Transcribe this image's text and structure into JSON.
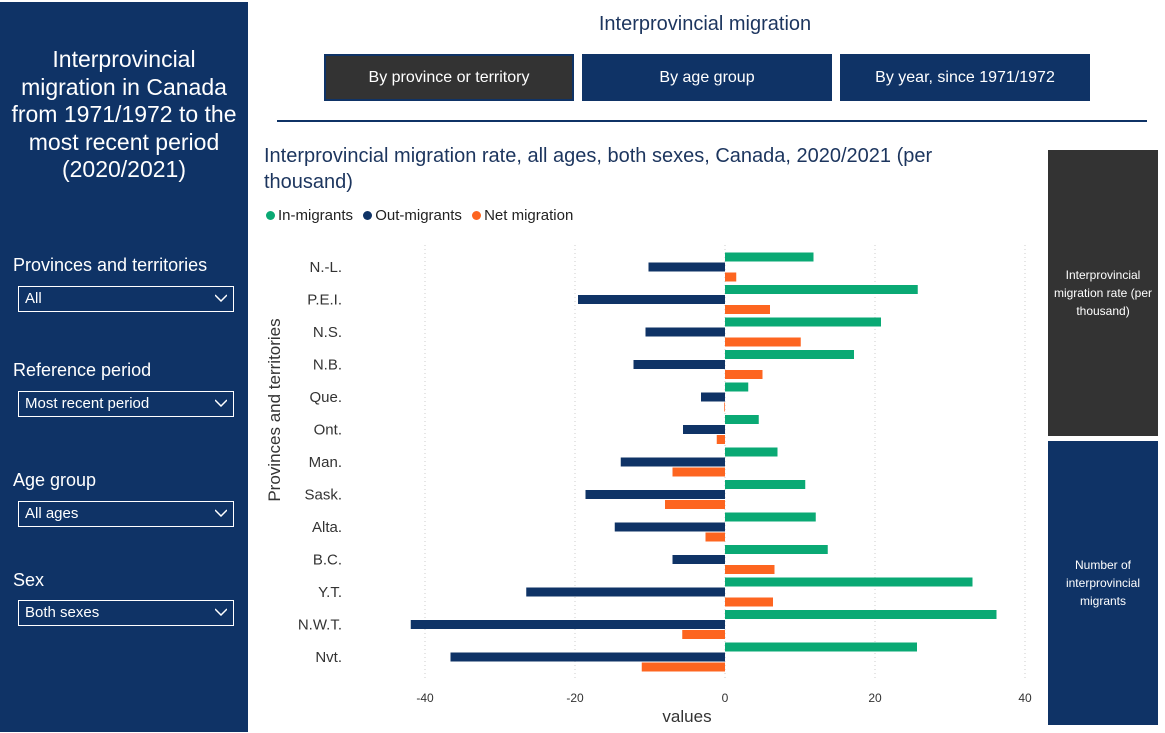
{
  "sidebar": {
    "title": "Interprovincial migration in Canada from 1971/1972 to the most recent period (2020/2021)",
    "filters": [
      {
        "label": "Provinces and territories",
        "value": "All"
      },
      {
        "label": "Reference period",
        "value": "Most recent period"
      },
      {
        "label": "Age group",
        "value": "All ages"
      },
      {
        "label": "Sex",
        "value": "Both sexes"
      }
    ]
  },
  "header": {
    "title": "Interprovincial migration",
    "tabs": [
      {
        "label": "By province or territory",
        "active": true
      },
      {
        "label": "By age group"
      },
      {
        "label": "By year, since 1971/1972"
      }
    ]
  },
  "right_panel": {
    "top": "Interprovincial migration rate (per thousand)",
    "bottom": "Number of interprovincial migrants"
  },
  "colors": {
    "navy": "#0f3366",
    "green": "#0aa974",
    "orange": "#fd6520"
  },
  "chart_data": {
    "type": "bar",
    "orientation": "horizontal",
    "title": "Interprovincial migration rate, all ages, both sexes, Canada, 2020/2021 (per thousand)",
    "xlabel": "values",
    "ylabel": "Provinces and territories",
    "xlim": [
      -40,
      40
    ],
    "xticks": [
      -40,
      -20,
      0,
      20,
      40
    ],
    "grid": true,
    "legend": "top-left",
    "categories": [
      "N.-L.",
      "P.E.I.",
      "N.S.",
      "N.B.",
      "Que.",
      "Ont.",
      "Man.",
      "Sask.",
      "Alta.",
      "B.C.",
      "Y.T.",
      "N.W.T.",
      "Nvt."
    ],
    "series": [
      {
        "name": "In-migrants",
        "color": "#0aa974",
        "values": [
          11.8,
          25.7,
          20.8,
          17.2,
          3.1,
          4.5,
          7.0,
          10.7,
          12.1,
          13.7,
          33.0,
          36.2,
          25.6
        ]
      },
      {
        "name": "Out-migrants",
        "color": "#0f3366",
        "values": [
          -10.2,
          -19.6,
          -10.6,
          -12.2,
          -3.2,
          -5.6,
          -13.9,
          -18.6,
          -14.7,
          -7.0,
          -26.5,
          -41.9,
          -36.6
        ]
      },
      {
        "name": "Net migration",
        "color": "#fd6520",
        "values": [
          1.5,
          6.0,
          10.1,
          5.0,
          -0.1,
          -1.1,
          -7.0,
          -8.0,
          -2.6,
          6.6,
          6.4,
          -5.7,
          -11.1
        ]
      }
    ]
  }
}
